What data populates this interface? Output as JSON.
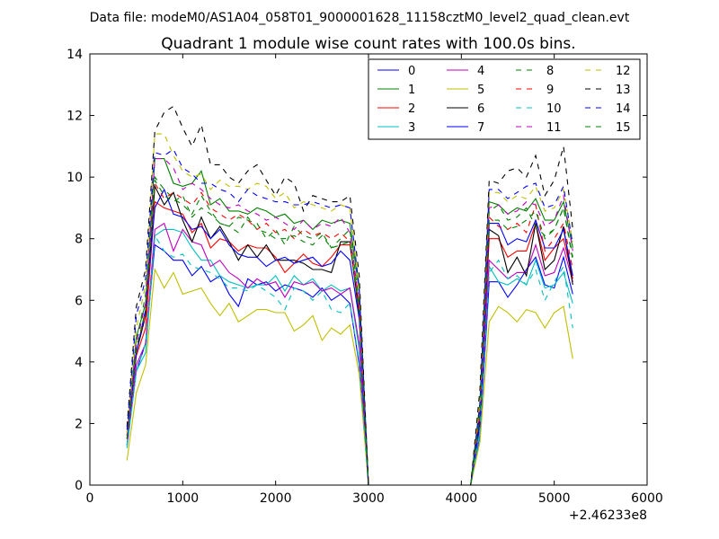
{
  "suptitle": "Data file: modeM0/AS1A04_058T01_9000001628_11158cztM0_level2_quad_clean.evt",
  "chart_data": {
    "type": "line",
    "title": "Quadrant 1 module wise count rates with 100.0s bins.",
    "xlabel": "",
    "ylabel": "",
    "x_offset_label": "+2.46233e8",
    "xlim": [
      0,
      6000
    ],
    "ylim": [
      0,
      14
    ],
    "x_ticks": [
      "0",
      "1000",
      "2000",
      "3000",
      "4000",
      "5000",
      "6000"
    ],
    "y_ticks": [
      "0",
      "2",
      "4",
      "6",
      "8",
      "10",
      "12",
      "14"
    ],
    "grid": false,
    "legend": "top-right, 4 columns",
    "x": [
      400,
      500,
      600,
      700,
      800,
      900,
      1000,
      1100,
      1200,
      1300,
      1400,
      1500,
      1600,
      1700,
      1800,
      1900,
      2000,
      2100,
      2200,
      2300,
      2400,
      2500,
      2600,
      2700,
      2800,
      2900,
      3000,
      3100,
      3200,
      3300,
      3400,
      3500,
      3600,
      3700,
      3800,
      3900,
      4000,
      4100,
      4200,
      4300,
      4400,
      4500,
      4600,
      4700,
      4800,
      4900,
      5000,
      5100,
      5200
    ],
    "series": [
      {
        "name": "0",
        "color": "#0000ff",
        "dash": "solid",
        "values": [
          1.3,
          3.7,
          4.6,
          7.8,
          7.6,
          7.3,
          7.3,
          6.8,
          7.1,
          6.6,
          6.8,
          6.2,
          5.8,
          6.7,
          6.5,
          6.6,
          6.3,
          6.5,
          6.4,
          6.3,
          6.1,
          6.4,
          6.0,
          6.2,
          5.9,
          3.9,
          0.0,
          0.0,
          0.0,
          0.0,
          0.0,
          0.0,
          0.0,
          0.0,
          0.0,
          0.0,
          0.0,
          0.0,
          1.6,
          6.6,
          6.6,
          6.1,
          6.5,
          7.0,
          7.4,
          6.5,
          6.4,
          7.4,
          6.2
        ]
      },
      {
        "name": "1",
        "color": "#008000",
        "dash": "solid",
        "values": [
          1.7,
          4.8,
          5.9,
          10.6,
          10.6,
          9.8,
          9.7,
          9.8,
          10.2,
          9.1,
          9.3,
          8.9,
          8.9,
          8.8,
          9.0,
          8.9,
          8.7,
          8.8,
          8.5,
          8.6,
          8.3,
          8.6,
          8.5,
          8.6,
          8.5,
          6.3,
          0.0,
          0.0,
          0.0,
          0.0,
          0.0,
          0.0,
          0.0,
          0.0,
          0.0,
          0.0,
          0.0,
          0.0,
          2.7,
          9.2,
          9.1,
          8.8,
          9.0,
          8.9,
          9.3,
          8.6,
          8.6,
          9.2,
          7.7
        ]
      },
      {
        "name": "2",
        "color": "#ff0000",
        "dash": "solid",
        "values": [
          1.5,
          4.2,
          5.1,
          9.2,
          9.0,
          8.9,
          8.8,
          8.2,
          8.5,
          7.7,
          8.0,
          7.9,
          7.6,
          7.8,
          7.7,
          7.7,
          7.4,
          6.9,
          7.2,
          7.5,
          7.2,
          7.1,
          7.4,
          7.8,
          7.8,
          5.8,
          0.0,
          0.0,
          0.0,
          0.0,
          0.0,
          0.0,
          0.0,
          0.0,
          0.0,
          0.0,
          0.0,
          0.0,
          2.1,
          8.0,
          8.0,
          7.4,
          7.6,
          7.6,
          8.5,
          7.3,
          7.7,
          8.0,
          6.7
        ]
      },
      {
        "name": "3",
        "color": "#00bfbf",
        "dash": "solid",
        "values": [
          1.2,
          3.7,
          4.3,
          8.1,
          8.3,
          8.3,
          8.2,
          7.7,
          7.3,
          7.3,
          6.8,
          6.6,
          6.5,
          6.4,
          6.5,
          6.5,
          6.8,
          6.3,
          6.8,
          6.5,
          6.7,
          6.3,
          6.5,
          6.3,
          6.4,
          4.4,
          0.0,
          0.0,
          0.0,
          0.0,
          0.0,
          0.0,
          0.0,
          0.0,
          0.0,
          0.0,
          0.0,
          0.0,
          1.7,
          7.1,
          6.6,
          6.5,
          6.7,
          6.5,
          7.3,
          6.4,
          6.5,
          6.9,
          5.9
        ]
      },
      {
        "name": "4",
        "color": "#bf00bf",
        "dash": "solid",
        "values": [
          1.3,
          3.9,
          4.6,
          8.3,
          8.5,
          7.6,
          8.3,
          7.9,
          7.8,
          7.1,
          7.3,
          6.9,
          6.7,
          6.4,
          6.7,
          6.5,
          6.6,
          6.1,
          6.6,
          6.5,
          6.6,
          6.3,
          6.4,
          6.2,
          6.4,
          4.6,
          0.0,
          0.0,
          0.0,
          0.0,
          0.0,
          0.0,
          0.0,
          0.0,
          0.0,
          0.0,
          0.0,
          0.0,
          1.9,
          7.3,
          7.0,
          6.7,
          6.9,
          6.9,
          7.8,
          6.8,
          6.9,
          7.7,
          6.6
        ]
      },
      {
        "name": "5",
        "color": "#bfbf00",
        "dash": "solid",
        "values": [
          0.8,
          3.0,
          3.9,
          7.0,
          6.4,
          6.9,
          6.2,
          6.3,
          6.4,
          5.9,
          5.5,
          5.9,
          5.3,
          5.5,
          5.7,
          5.7,
          5.6,
          5.6,
          5.0,
          5.2,
          5.5,
          4.7,
          5.1,
          4.9,
          5.2,
          3.6,
          0.0,
          0.0,
          0.0,
          0.0,
          0.0,
          0.0,
          0.0,
          0.0,
          0.0,
          0.0,
          0.0,
          0.0,
          1.4,
          5.3,
          5.8,
          5.6,
          5.3,
          5.7,
          5.6,
          5.1,
          5.6,
          5.8,
          4.1
        ]
      },
      {
        "name": "6",
        "color": "#000000",
        "dash": "solid",
        "values": [
          1.6,
          4.3,
          5.5,
          9.7,
          9.1,
          9.5,
          8.6,
          7.9,
          8.7,
          8.0,
          8.4,
          7.9,
          7.3,
          7.8,
          7.4,
          7.8,
          7.3,
          7.3,
          7.3,
          7.2,
          7.0,
          7.0,
          6.9,
          7.9,
          7.9,
          5.5,
          0.0,
          0.0,
          0.0,
          0.0,
          0.0,
          0.0,
          0.0,
          0.0,
          0.0,
          0.0,
          0.0,
          0.0,
          2.3,
          8.3,
          8.1,
          6.9,
          7.4,
          6.8,
          8.5,
          7.0,
          7.3,
          8.4,
          6.5
        ]
      },
      {
        "name": "7",
        "color": "#0000ff",
        "dash": "solid",
        "values": [
          1.5,
          4.3,
          5.7,
          9.0,
          9.6,
          8.8,
          8.7,
          8.3,
          8.4,
          8.0,
          8.3,
          7.8,
          7.5,
          7.4,
          7.4,
          7.1,
          7.3,
          7.4,
          7.2,
          7.3,
          7.4,
          7.1,
          7.2,
          7.6,
          7.3,
          5.4,
          0.0,
          0.0,
          0.0,
          0.0,
          0.0,
          0.0,
          0.0,
          0.0,
          0.0,
          0.0,
          0.0,
          0.0,
          2.0,
          8.5,
          8.5,
          7.8,
          8.0,
          7.9,
          8.6,
          7.7,
          7.7,
          8.3,
          6.8
        ]
      },
      {
        "name": "8",
        "color": "#008000",
        "dash": "dashed",
        "values": [
          1.6,
          4.6,
          6.2,
          10.0,
          9.6,
          9.3,
          9.1,
          8.8,
          9.4,
          8.9,
          8.5,
          8.4,
          8.7,
          8.6,
          8.5,
          8.0,
          8.3,
          7.8,
          8.4,
          8.1,
          8.0,
          8.2,
          7.7,
          8.0,
          8.3,
          5.9,
          0.0,
          0.0,
          0.0,
          0.0,
          0.0,
          0.0,
          0.0,
          0.0,
          0.0,
          0.0,
          0.0,
          0.0,
          2.4,
          8.9,
          9.1,
          8.6,
          8.7,
          9.0,
          8.4,
          8.1,
          8.3,
          9.0,
          7.4
        ]
      },
      {
        "name": "9",
        "color": "#ff0000",
        "dash": "dashed",
        "values": [
          1.5,
          4.5,
          5.5,
          9.8,
          9.3,
          9.5,
          9.3,
          9.1,
          9.5,
          9.0,
          8.8,
          8.6,
          8.8,
          8.6,
          8.3,
          8.5,
          8.2,
          8.3,
          8.0,
          8.3,
          8.1,
          8.2,
          8.0,
          8.2,
          7.9,
          5.6,
          0.0,
          0.0,
          0.0,
          0.0,
          0.0,
          0.0,
          0.0,
          0.0,
          0.0,
          0.0,
          0.0,
          0.0,
          2.3,
          8.7,
          8.4,
          8.3,
          8.5,
          8.2,
          9.1,
          7.6,
          8.0,
          8.5,
          7.0
        ]
      },
      {
        "name": "10",
        "color": "#00bfbf",
        "dash": "dashed",
        "values": [
          1.3,
          3.7,
          4.6,
          8.1,
          7.6,
          7.4,
          7.5,
          7.1,
          7.0,
          6.9,
          6.7,
          6.4,
          6.4,
          6.3,
          6.5,
          6.3,
          6.1,
          5.7,
          6.4,
          6.3,
          6.0,
          6.3,
          5.7,
          5.6,
          5.9,
          4.0,
          0.0,
          0.0,
          0.0,
          0.0,
          0.0,
          0.0,
          0.0,
          0.0,
          0.0,
          0.0,
          0.0,
          0.0,
          1.8,
          6.9,
          7.3,
          6.7,
          6.8,
          6.5,
          7.0,
          6.0,
          6.6,
          7.1,
          5.1
        ]
      },
      {
        "name": "11",
        "color": "#bf00bf",
        "dash": "dashed",
        "values": [
          1.6,
          4.6,
          5.9,
          10.6,
          10.6,
          10.3,
          9.6,
          9.8,
          9.6,
          9.3,
          9.1,
          9.0,
          9.1,
          8.9,
          8.8,
          8.6,
          8.7,
          8.5,
          8.3,
          8.6,
          8.3,
          8.5,
          8.4,
          8.7,
          8.2,
          5.9,
          0.0,
          0.0,
          0.0,
          0.0,
          0.0,
          0.0,
          0.0,
          0.0,
          0.0,
          0.0,
          0.0,
          0.0,
          2.5,
          9.0,
          9.1,
          8.8,
          8.9,
          9.2,
          9.1,
          8.4,
          8.6,
          9.4,
          7.6
        ]
      },
      {
        "name": "12",
        "color": "#bfbf00",
        "dash": "dashed",
        "values": [
          1.7,
          5.1,
          6.5,
          11.4,
          11.4,
          10.7,
          10.2,
          10.0,
          10.1,
          9.6,
          9.9,
          9.7,
          9.7,
          9.6,
          9.8,
          9.7,
          9.3,
          9.5,
          9.0,
          9.2,
          9.1,
          9.0,
          8.9,
          9.1,
          9.0,
          6.4,
          0.0,
          0.0,
          0.0,
          0.0,
          0.0,
          0.0,
          0.0,
          0.0,
          0.0,
          0.0,
          0.0,
          0.0,
          2.7,
          9.5,
          9.5,
          9.2,
          9.4,
          9.3,
          9.7,
          8.9,
          9.0,
          9.6,
          7.9
        ]
      },
      {
        "name": "13",
        "color": "#000000",
        "dash": "dashed",
        "values": [
          1.9,
          5.8,
          7.0,
          11.5,
          12.1,
          12.3,
          11.6,
          11.0,
          11.7,
          10.4,
          10.4,
          10.0,
          9.8,
          10.2,
          10.4,
          9.9,
          9.4,
          10.0,
          9.8,
          8.9,
          9.4,
          9.3,
          9.2,
          9.2,
          9.4,
          6.8,
          0.0,
          0.0,
          0.0,
          0.0,
          0.0,
          0.0,
          0.0,
          0.0,
          0.0,
          0.0,
          0.0,
          0.0,
          3.1,
          9.9,
          9.8,
          10.2,
          10.3,
          10.0,
          10.7,
          9.4,
          9.9,
          11.0,
          8.3
        ]
      },
      {
        "name": "14",
        "color": "#0000ff",
        "dash": "dashed",
        "values": [
          1.8,
          5.5,
          6.7,
          10.8,
          10.7,
          10.9,
          10.3,
          10.1,
          9.8,
          9.8,
          9.6,
          9.5,
          9.2,
          9.6,
          9.4,
          9.3,
          9.2,
          9.2,
          9.1,
          9.1,
          9.2,
          9.1,
          9.0,
          9.1,
          9.0,
          6.4,
          0.0,
          0.0,
          0.0,
          0.0,
          0.0,
          0.0,
          0.0,
          0.0,
          0.0,
          0.0,
          0.0,
          0.0,
          2.6,
          9.6,
          9.6,
          9.3,
          9.5,
          9.7,
          9.8,
          9.0,
          9.1,
          9.7,
          7.8
        ]
      },
      {
        "name": "15",
        "color": "#008000",
        "dash": "dashed",
        "values": [
          1.5,
          4.4,
          5.7,
          9.9,
          9.4,
          9.2,
          9.4,
          8.7,
          9.0,
          8.8,
          8.5,
          8.4,
          8.2,
          8.7,
          8.3,
          8.2,
          8.0,
          8.0,
          8.1,
          7.9,
          7.8,
          8.1,
          7.7,
          7.8,
          7.9,
          5.6,
          0.0,
          0.0,
          0.0,
          0.0,
          0.0,
          0.0,
          0.0,
          0.0,
          0.0,
          0.0,
          0.0,
          0.0,
          2.3,
          8.6,
          8.6,
          8.3,
          8.4,
          8.6,
          8.9,
          8.0,
          8.3,
          9.0,
          7.3
        ]
      }
    ]
  }
}
